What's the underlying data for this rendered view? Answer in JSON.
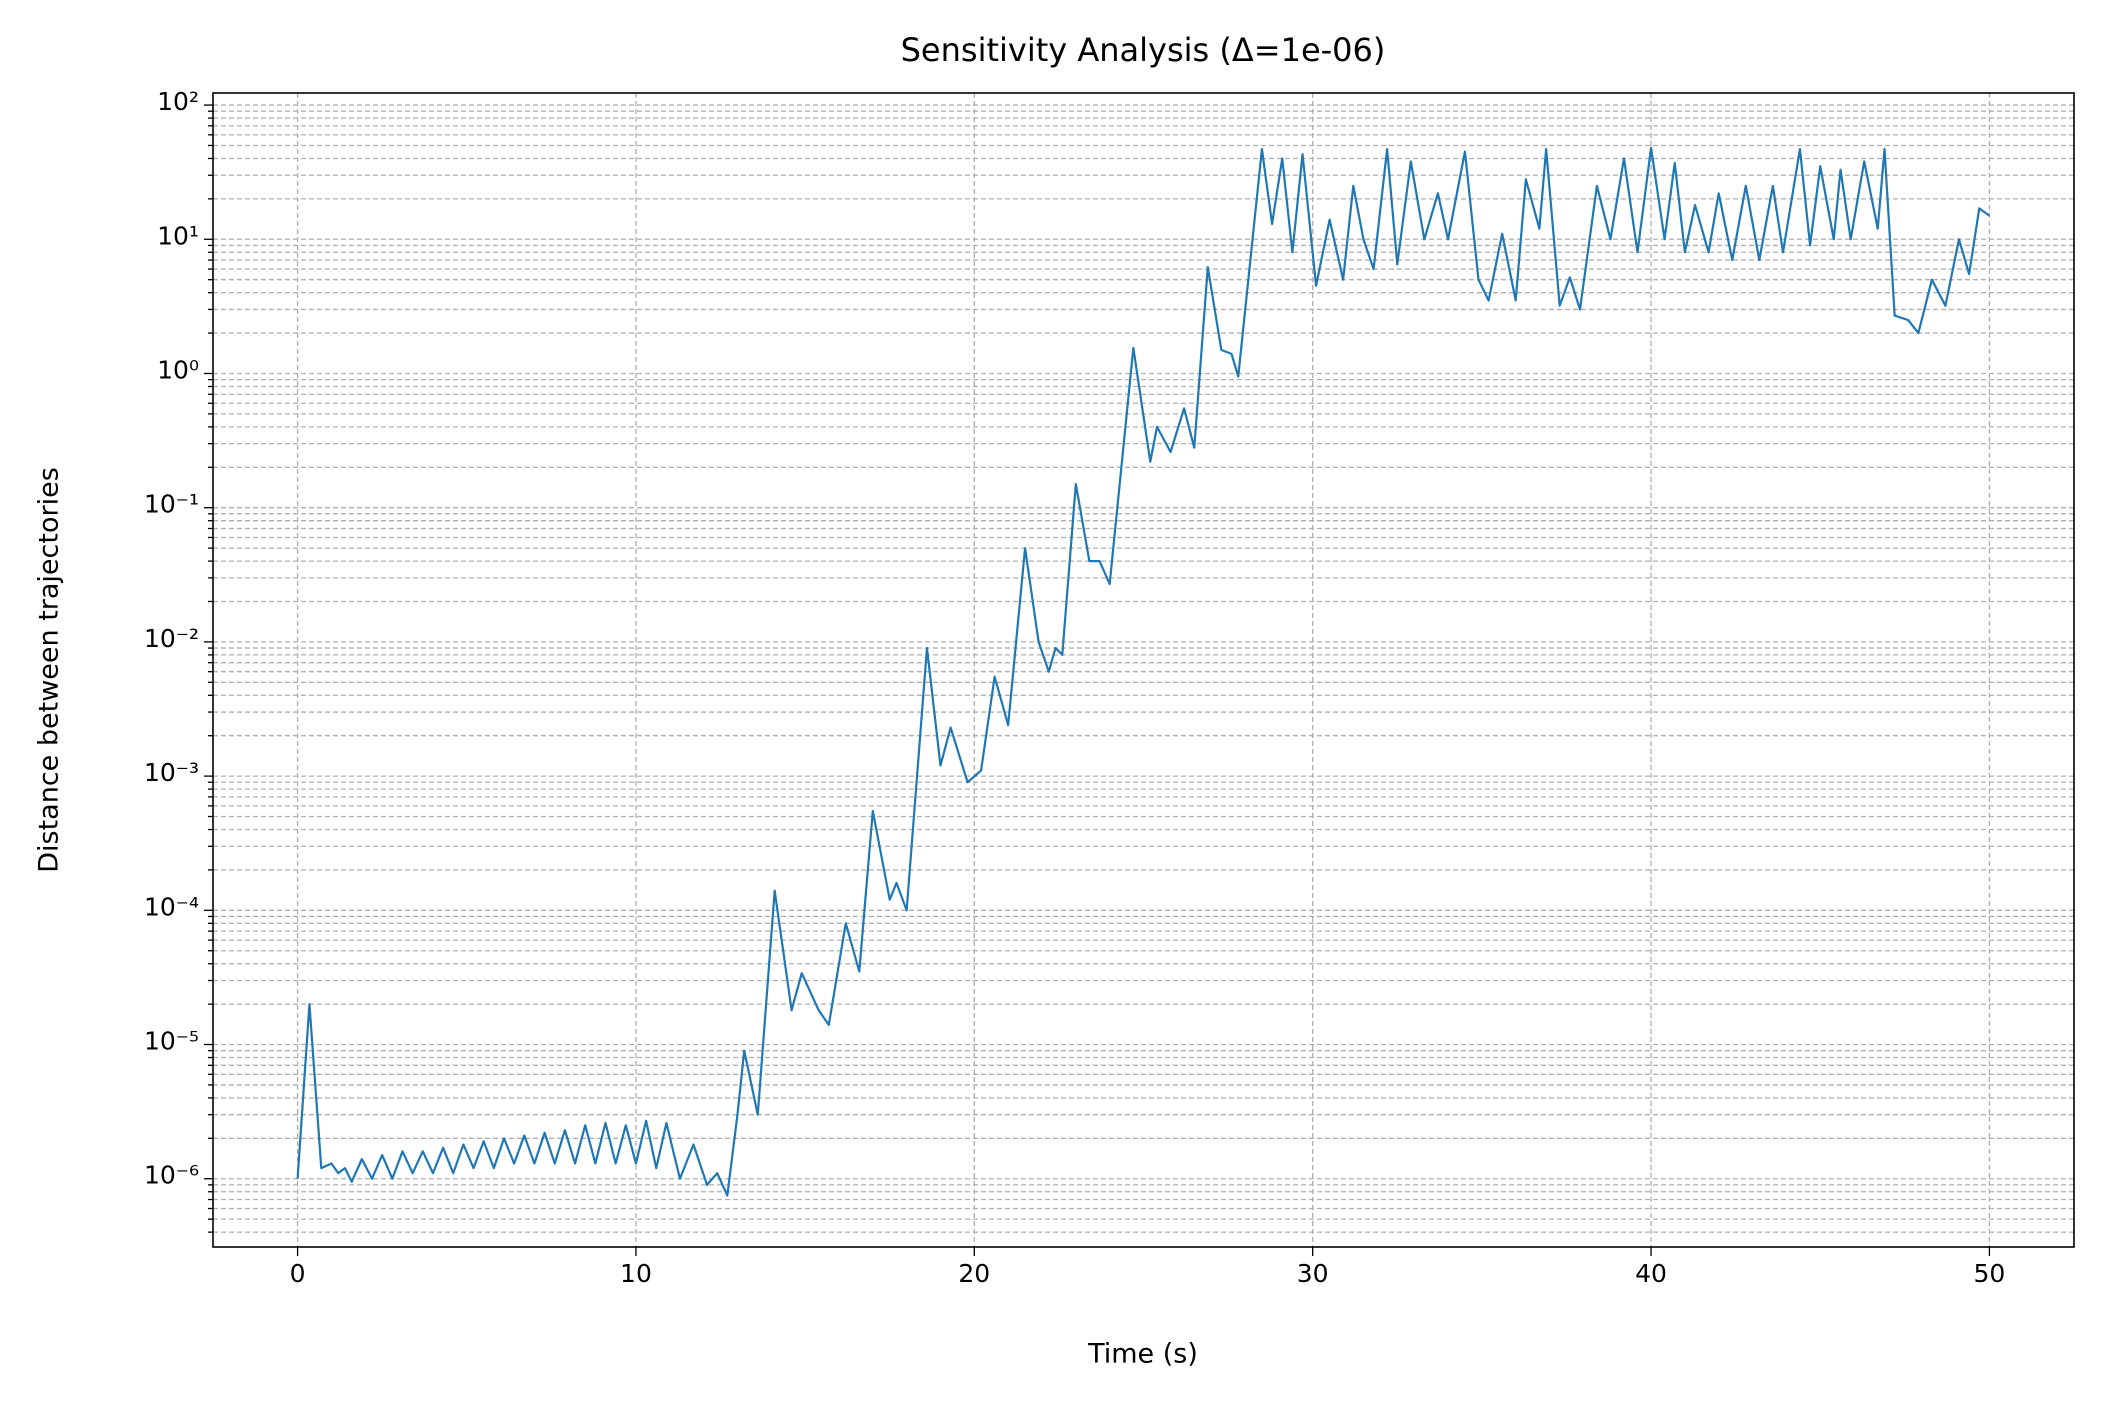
{
  "chart_data": {
    "type": "line",
    "title": "Sensitivity Analysis (Δ=1e-06)",
    "x_label": "Time (s)",
    "y_label": "Distance between trajectories",
    "color": "#1f77b4",
    "log_y": true,
    "grid": true,
    "minor_grid": true,
    "xlim": [
      -2.5,
      52.5
    ],
    "xticks": [
      0,
      10,
      20,
      30,
      40,
      50
    ],
    "ylim": [
      3.1e-07,
      123
    ],
    "yticks": [
      {
        "value": 1e-06,
        "label": "10⁻⁶"
      },
      {
        "value": 1e-05,
        "label": "10⁻⁵"
      },
      {
        "value": 0.0001,
        "label": "10⁻⁴"
      },
      {
        "value": 0.001,
        "label": "10⁻³"
      },
      {
        "value": 0.01,
        "label": "10⁻²"
      },
      {
        "value": 0.1,
        "label": "10⁻¹"
      },
      {
        "value": 1,
        "label": "10⁰"
      },
      {
        "value": 10,
        "label": "10¹"
      },
      {
        "value": 100,
        "label": "10²"
      }
    ],
    "x": [
      0,
      0.35,
      0.7,
      1.0,
      1.2,
      1.4,
      1.6,
      1.9,
      2.2,
      2.5,
      2.8,
      3.1,
      3.4,
      3.7,
      4.0,
      4.3,
      4.6,
      4.9,
      5.2,
      5.5,
      5.8,
      6.1,
      6.4,
      6.7,
      7.0,
      7.3,
      7.6,
      7.9,
      8.2,
      8.5,
      8.8,
      9.1,
      9.4,
      9.7,
      10.0,
      10.3,
      10.6,
      10.9,
      11.3,
      11.7,
      12.1,
      12.4,
      12.7,
      13.0,
      13.2,
      13.6,
      14.1,
      14.6,
      14.9,
      15.4,
      15.7,
      16.2,
      16.6,
      17.0,
      17.5,
      17.7,
      18.0,
      18.6,
      19.0,
      19.3,
      19.8,
      20.2,
      20.6,
      21.0,
      21.5,
      21.9,
      22.2,
      22.4,
      22.6,
      23.0,
      23.4,
      23.7,
      24.0,
      24.7,
      25.2,
      25.4,
      25.8,
      26.2,
      26.5,
      26.9,
      27.3,
      27.6,
      27.8,
      28.5,
      28.8,
      29.1,
      29.4,
      29.7,
      30.1,
      30.5,
      30.9,
      31.2,
      31.5,
      31.8,
      32.2,
      32.5,
      32.9,
      33.3,
      33.7,
      34.0,
      34.5,
      34.9,
      35.2,
      35.6,
      36.0,
      36.3,
      36.7,
      36.9,
      37.3,
      37.6,
      37.9,
      38.4,
      38.8,
      39.2,
      39.6,
      40.0,
      40.4,
      40.7,
      41.0,
      41.3,
      41.7,
      42.0,
      42.4,
      42.8,
      43.2,
      43.6,
      43.9,
      44.4,
      44.7,
      45.0,
      45.4,
      45.6,
      45.9,
      46.3,
      46.7,
      46.9,
      47.2,
      47.6,
      47.9,
      48.3,
      48.7,
      49.1,
      49.4,
      49.7,
      50.0
    ],
    "values": [
      1e-06,
      2e-05,
      1.2e-06,
      1.3e-06,
      1.1e-06,
      1.2e-06,
      9.5e-07,
      1.4e-06,
      1e-06,
      1.5e-06,
      1e-06,
      1.6e-06,
      1.1e-06,
      1.6e-06,
      1.1e-06,
      1.7e-06,
      1.1e-06,
      1.8e-06,
      1.2e-06,
      1.9e-06,
      1.2e-06,
      2e-06,
      1.3e-06,
      2.1e-06,
      1.3e-06,
      2.2e-06,
      1.3e-06,
      2.3e-06,
      1.3e-06,
      2.5e-06,
      1.3e-06,
      2.6e-06,
      1.3e-06,
      2.5e-06,
      1.3e-06,
      2.7e-06,
      1.2e-06,
      2.6e-06,
      1e-06,
      1.8e-06,
      9e-07,
      1.1e-06,
      7.5e-07,
      3e-06,
      9e-06,
      3e-06,
      0.00014,
      1.8e-05,
      3.4e-05,
      1.8e-05,
      1.4e-05,
      8e-05,
      3.5e-05,
      0.00055,
      0.00012,
      0.00016,
      0.0001,
      0.009,
      0.0012,
      0.0023,
      0.0009,
      0.0011,
      0.0055,
      0.0024,
      0.05,
      0.01,
      0.006,
      0.009,
      0.008,
      0.15,
      0.04,
      0.04,
      0.027,
      1.55,
      0.22,
      0.4,
      0.26,
      0.55,
      0.28,
      6.2,
      1.5,
      1.4,
      0.95,
      47,
      13,
      40,
      8,
      43,
      4.5,
      14,
      5,
      25,
      10,
      6,
      47,
      6.5,
      38,
      10,
      22,
      10,
      45,
      5,
      3.5,
      11,
      3.5,
      28,
      12,
      47,
      3.2,
      5.2,
      3,
      25,
      10,
      40,
      8,
      48,
      10,
      37,
      8,
      18,
      8,
      22,
      7,
      25,
      7,
      25,
      8,
      47,
      9,
      35,
      10,
      33,
      10,
      38,
      12,
      47,
      2.7,
      2.5,
      2,
      5,
      3.2,
      10,
      5.5,
      17,
      15
    ]
  }
}
